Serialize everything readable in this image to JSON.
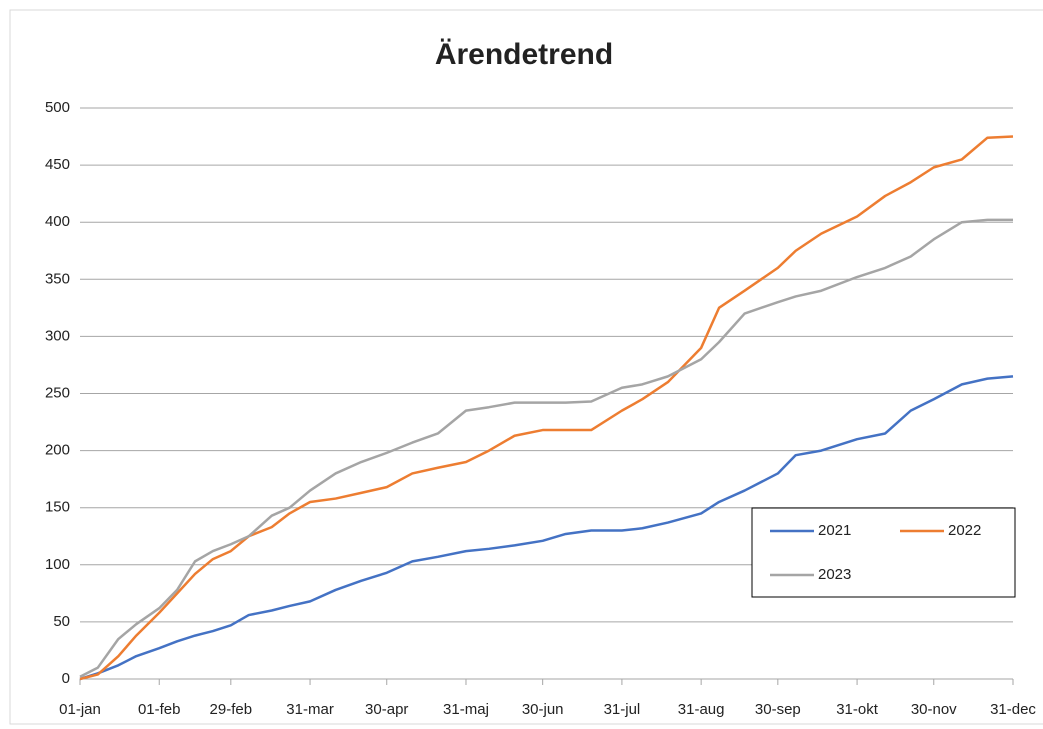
{
  "chart_data": {
    "type": "line",
    "title": "Ärendetrend",
    "x": [
      0,
      7,
      15,
      22,
      31,
      38,
      45,
      52,
      59,
      66,
      75,
      82,
      90,
      100,
      110,
      120,
      130,
      140,
      151,
      160,
      170,
      181,
      190,
      200,
      212,
      220,
      230,
      243,
      250,
      260,
      273,
      280,
      290,
      304,
      315,
      325,
      334,
      345,
      355,
      365
    ],
    "series": [
      {
        "name": "2021",
        "color": "#4472c4",
        "values": [
          0,
          5,
          12,
          20,
          27,
          33,
          38,
          42,
          47,
          56,
          60,
          64,
          68,
          78,
          86,
          93,
          103,
          107,
          112,
          114,
          117,
          121,
          127,
          130,
          130,
          132,
          137,
          145,
          155,
          165,
          180,
          196,
          200,
          210,
          215,
          235,
          245,
          258,
          263,
          265
        ]
      },
      {
        "name": "2022",
        "color": "#ed7d31",
        "values": [
          0,
          4,
          20,
          38,
          58,
          75,
          92,
          105,
          112,
          125,
          133,
          145,
          155,
          158,
          163,
          168,
          180,
          185,
          190,
          200,
          213,
          218,
          218,
          218,
          235,
          245,
          260,
          290,
          325,
          340,
          360,
          375,
          390,
          405,
          423,
          435,
          448,
          455,
          474,
          475
        ]
      },
      {
        "name": "2023",
        "color": "#a5a5a5",
        "values": [
          2,
          10,
          35,
          48,
          62,
          78,
          103,
          112,
          118,
          125,
          143,
          150,
          165,
          180,
          190,
          198,
          207,
          215,
          235,
          238,
          242,
          242,
          242,
          243,
          255,
          258,
          265,
          280,
          295,
          320,
          330,
          335,
          340,
          352,
          360,
          370,
          385,
          400,
          402,
          402
        ]
      }
    ],
    "xlim": [
      0,
      365
    ],
    "xticks": [
      {
        "value": 0,
        "label": "01-jan"
      },
      {
        "value": 31,
        "label": "01-feb"
      },
      {
        "value": 59,
        "label": "29-feb"
      },
      {
        "value": 90,
        "label": "31-mar"
      },
      {
        "value": 120,
        "label": "30-apr"
      },
      {
        "value": 151,
        "label": "31-maj"
      },
      {
        "value": 181,
        "label": "30-jun"
      },
      {
        "value": 212,
        "label": "31-jul"
      },
      {
        "value": 243,
        "label": "31-aug"
      },
      {
        "value": 273,
        "label": "30-sep"
      },
      {
        "value": 304,
        "label": "31-okt"
      },
      {
        "value": 334,
        "label": "30-nov"
      },
      {
        "value": 365,
        "label": "31-dec"
      }
    ],
    "ylim": [
      0,
      500
    ],
    "yticks": [
      0,
      50,
      100,
      150,
      200,
      250,
      300,
      350,
      400,
      450,
      500
    ],
    "grid": true
  }
}
